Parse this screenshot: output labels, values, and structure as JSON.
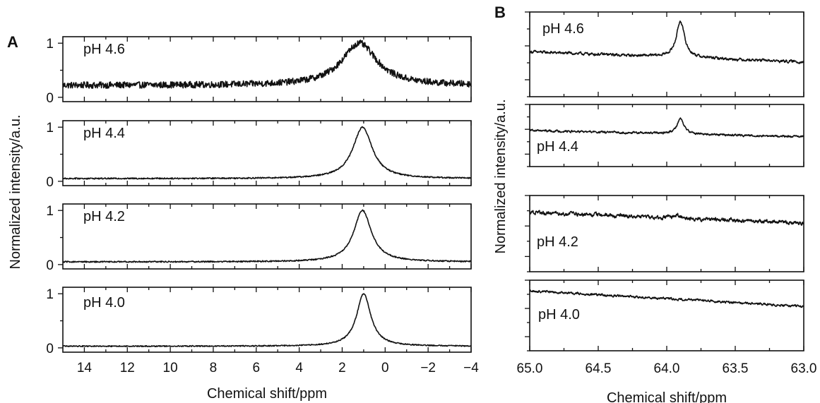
{
  "panel_a_letter": "A",
  "panel_b_letter": "B",
  "chart_data": [
    {
      "type": "line",
      "panel": "A",
      "xlabel": "Chemical shift/ppm",
      "ylabel": "Normalized intensity/a.u.",
      "xlim": [
        15,
        -4
      ],
      "x_reversed": true,
      "xticks": [
        14,
        12,
        10,
        8,
        6,
        4,
        2,
        0,
        -2,
        -4
      ],
      "xtick_labels": [
        "14",
        "12",
        "10",
        "8",
        "6",
        "4",
        "2",
        "0",
        "−2",
        "−4"
      ],
      "yticks": [
        0,
        1
      ],
      "grid": false,
      "series": [
        {
          "name": "pH 4.6",
          "ylim": [
            -0.08,
            1.12
          ],
          "baseline": 0.22,
          "noise": 0.06,
          "peak": {
            "center": 1.2,
            "height": 0.78,
            "width": 1.0
          }
        },
        {
          "name": "pH 4.4",
          "ylim": [
            -0.08,
            1.12
          ],
          "baseline": 0.05,
          "noise": 0.012,
          "peak": {
            "center": 1.05,
            "height": 0.95,
            "width": 0.55
          }
        },
        {
          "name": "pH 4.2",
          "ylim": [
            -0.08,
            1.12
          ],
          "baseline": 0.05,
          "noise": 0.012,
          "peak": {
            "center": 1.05,
            "height": 0.95,
            "width": 0.5
          }
        },
        {
          "name": "pH 4.0",
          "ylim": [
            -0.08,
            1.12
          ],
          "baseline": 0.03,
          "noise": 0.01,
          "peak": {
            "center": 1.0,
            "height": 0.97,
            "width": 0.4
          }
        }
      ]
    },
    {
      "type": "line",
      "panel": "B",
      "xlabel": "Chemical shift/ppm",
      "ylabel": "Normalized intensity/a.u.",
      "xlim": [
        65.0,
        63.0
      ],
      "x_reversed": true,
      "xticks": [
        65.0,
        64.5,
        64.0,
        63.5,
        63.0
      ],
      "xtick_labels": [
        "65.0",
        "64.5",
        "64.0",
        "63.5",
        "63.0"
      ],
      "grid": false,
      "series": [
        {
          "name": "pH 4.6",
          "ylim": [
            0,
            1
          ],
          "baseline": 0.53,
          "slope": 0.12,
          "noise": 0.03,
          "peak": {
            "center": 63.9,
            "height": 0.43,
            "width": 0.035
          }
        },
        {
          "name": "pH 4.4",
          "ylim": [
            0,
            1
          ],
          "baseline": 0.58,
          "slope": 0.1,
          "noise": 0.03,
          "peak": {
            "center": 63.9,
            "height": 0.25,
            "width": 0.03
          }
        },
        {
          "name": "pH 4.2",
          "ylim": [
            0,
            1
          ],
          "baseline": 0.78,
          "slope": 0.14,
          "noise": 0.045,
          "peak": {
            "center": 63.92,
            "height": 0.05,
            "width": 0.02
          }
        },
        {
          "name": "pH 4.0",
          "ylim": [
            0,
            1
          ],
          "baseline": 0.85,
          "slope": 0.22,
          "noise": 0.03,
          "peak": {
            "center": 64.0,
            "height": 0.0,
            "width": 0.02
          }
        }
      ]
    }
  ]
}
